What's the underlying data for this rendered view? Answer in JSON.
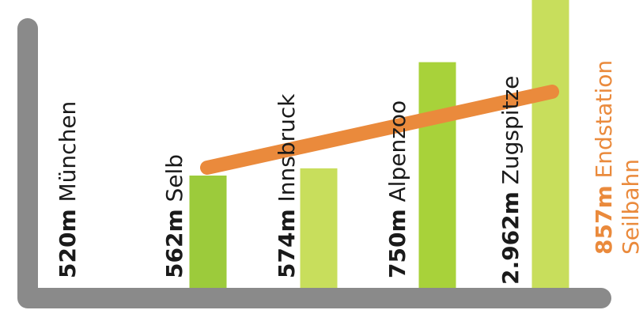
{
  "chart_data": {
    "type": "bar",
    "categories": [
      {
        "altitude": "520m",
        "name": "München"
      },
      {
        "altitude": "562m",
        "name": "Selb"
      },
      {
        "altitude": "574m",
        "name": "Innsbruck"
      },
      {
        "altitude": "750m",
        "name": "Alpenzoo"
      },
      {
        "altitude": "2.962m",
        "name": "Zugspitze"
      },
      {
        "altitude": "857m",
        "name": "Endstation Seilbahn"
      }
    ],
    "values": [
      null,
      562,
      574,
      750,
      null,
      857
    ],
    "bar_colors": [
      null,
      "#9ccb3b",
      "#c8de5c",
      "#a8d23a",
      null,
      "#c8de5c"
    ],
    "trend_line": {
      "color": "#ea8a3c",
      "from_category": 1,
      "to_category": 5
    },
    "axis_color": "#8a8a8a",
    "label_color": "#1a1a1a",
    "highlight_label_color": "#ea8a3c",
    "ylim": [
      520,
      857
    ],
    "grid": false,
    "legend": "none"
  }
}
